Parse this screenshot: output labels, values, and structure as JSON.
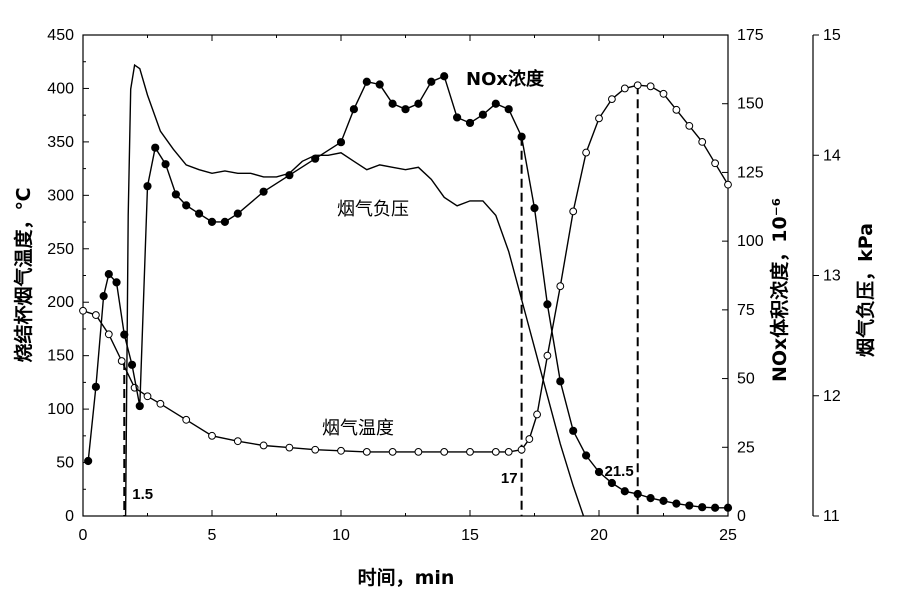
{
  "chart_data": {
    "type": "line",
    "xlabel": "时间，min",
    "ylabel_left": "烧结杯烟气温度，℃",
    "ylabel_right1": "NOx体积浓度，10⁻⁶",
    "ylabel_right2": "烟气负压，kPa",
    "xlim": [
      0,
      25
    ],
    "ylim_left": [
      0,
      450
    ],
    "ylim_right1": [
      0,
      175
    ],
    "ylim_right2": [
      11,
      15
    ],
    "x_ticks": [
      "0",
      "5",
      "10",
      "15",
      "20",
      "25"
    ],
    "y_left_ticks": [
      "0",
      "50",
      "100",
      "150",
      "200",
      "250",
      "300",
      "350",
      "400",
      "450"
    ],
    "y_right1_ticks": [
      "0",
      "25",
      "50",
      "75",
      "100",
      "125",
      "150",
      "175"
    ],
    "y_right2_ticks": [
      "11",
      "12",
      "13",
      "14",
      "15"
    ],
    "annotations": {
      "nox_label": "NOx浓度",
      "pressure_label": "烟气负压",
      "temperature_label": "烟气温度"
    },
    "markers": [
      {
        "x": 1.6,
        "label": "1.5"
      },
      {
        "x": 17.0,
        "label": "17"
      },
      {
        "x": 21.5,
        "label": "21.5"
      }
    ],
    "series": [
      {
        "name": "烟气温度",
        "axis": "left",
        "style": "open-circle",
        "x": [
          0,
          0.5,
          1,
          1.5,
          2,
          2.5,
          3,
          4,
          5,
          6,
          7,
          8,
          9,
          10,
          11,
          12,
          13,
          14,
          15,
          16,
          16.5,
          17,
          17.3,
          17.6,
          18,
          18.5,
          19,
          19.5,
          20,
          20.5,
          21,
          21.5,
          22,
          22.5,
          23,
          23.5,
          24,
          24.5,
          25
        ],
        "y": [
          192,
          188,
          170,
          145,
          120,
          112,
          105,
          90,
          75,
          70,
          66,
          64,
          62,
          61,
          60,
          60,
          60,
          60,
          60,
          60,
          60,
          62,
          72,
          95,
          150,
          215,
          285,
          340,
          372,
          390,
          400,
          403,
          402,
          395,
          380,
          365,
          350,
          330,
          310
        ]
      },
      {
        "name": "NOx浓度",
        "axis": "right1",
        "style": "filled-circle",
        "x": [
          0.2,
          0.5,
          0.8,
          1.0,
          1.3,
          1.6,
          1.9,
          2.2,
          2.5,
          2.8,
          3.2,
          3.6,
          4.0,
          4.5,
          5.0,
          5.5,
          6.0,
          7.0,
          8.0,
          9.0,
          10.0,
          10.5,
          11.0,
          11.5,
          12.0,
          12.5,
          13.0,
          13.5,
          14.0,
          14.5,
          15.0,
          15.5,
          16.0,
          16.5,
          17.0,
          17.5,
          18.0,
          18.5,
          19.0,
          19.5,
          20.0,
          20.5,
          21.0,
          21.5,
          22.0,
          22.5,
          23.0,
          23.5,
          24.0,
          24.5,
          25.0
        ],
        "y": [
          20,
          47,
          80,
          88,
          85,
          66,
          55,
          40,
          120,
          134,
          128,
          117,
          113,
          110,
          107,
          107,
          110,
          118,
          124,
          130,
          136,
          148,
          158,
          157,
          150,
          148,
          150,
          158,
          160,
          145,
          143,
          146,
          150,
          148,
          138,
          112,
          77,
          49,
          31,
          22,
          16,
          12,
          9,
          8,
          6.5,
          5.5,
          4.5,
          3.8,
          3.2,
          3.0,
          3.0
        ]
      },
      {
        "name": "烟气负压",
        "axis": "right2",
        "style": "line",
        "x": [
          1.65,
          1.75,
          1.85,
          2.0,
          2.2,
          2.5,
          3.0,
          3.5,
          4.0,
          4.5,
          5.0,
          5.5,
          6.0,
          6.5,
          7.0,
          7.5,
          8.0,
          8.5,
          9.0,
          9.5,
          10.0,
          10.5,
          11.0,
          11.5,
          12.0,
          12.5,
          13.0,
          13.5,
          14.0,
          14.5,
          15.0,
          15.5,
          16.0,
          16.5,
          17.0,
          17.5,
          18.0,
          18.5,
          19.0,
          19.4
        ],
        "y": [
          11.0,
          13.5,
          14.55,
          14.75,
          14.72,
          14.5,
          14.2,
          14.05,
          13.92,
          13.88,
          13.85,
          13.87,
          13.85,
          13.85,
          13.82,
          13.82,
          13.85,
          13.95,
          14.0,
          14.0,
          14.02,
          13.95,
          13.88,
          13.92,
          13.9,
          13.88,
          13.9,
          13.8,
          13.65,
          13.58,
          13.62,
          13.62,
          13.5,
          13.2,
          12.8,
          12.4,
          12.0,
          11.6,
          11.25,
          11.0
        ]
      }
    ]
  }
}
